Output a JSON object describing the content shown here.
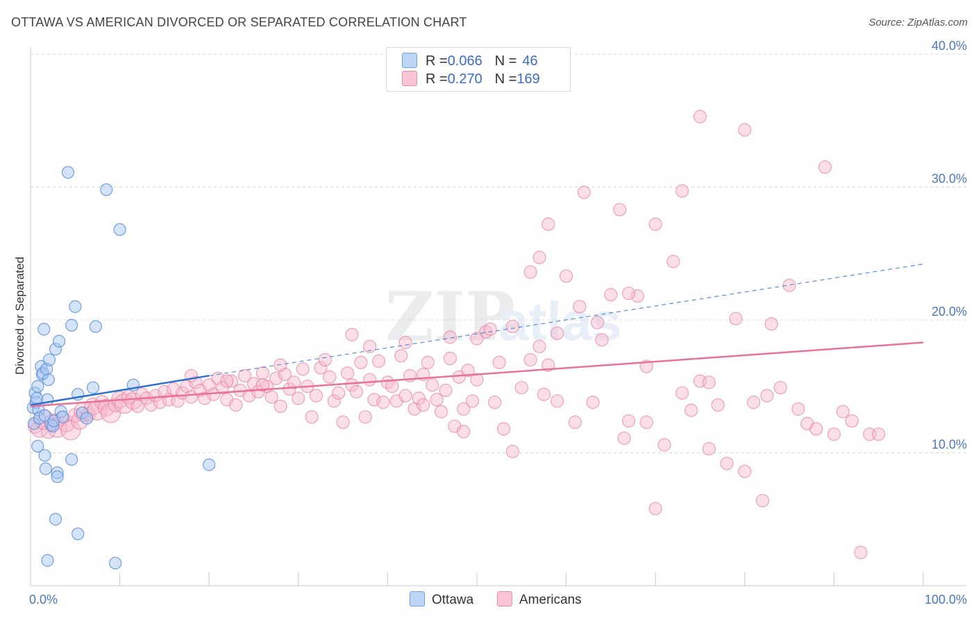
{
  "header": {
    "title": "OTTAWA VS AMERICAN DIVORCED OR SEPARATED CORRELATION CHART",
    "source": "Source: ZipAtlas.com"
  },
  "legend": {
    "rows": [
      {
        "r_label": "R = ",
        "r_value": "0.066",
        "n_label": "N = ",
        "n_value": "46"
      },
      {
        "r_label": "R = ",
        "r_value": "0.270",
        "n_label": "N = ",
        "n_value": "169"
      }
    ]
  },
  "watermark": {
    "zip": "ZIP",
    "atlas": "atlas"
  },
  "colors": {
    "ottawa_fill": "#a9c8f2",
    "ottawa_stroke": "#5b8fd8",
    "ottawa_line": "#2f6fd0",
    "americans_fill": "#f7b9cb",
    "americans_stroke": "#e77fa0",
    "americans_line": "#e8729a",
    "tick_label": "#4a77c4",
    "grid": "#d9d9d9"
  },
  "chart_data": {
    "type": "scatter",
    "title": "OTTAWA VS AMERICAN DIVORCED OR SEPARATED CORRELATION CHART",
    "xlabel": "",
    "ylabel": "Divorced or Separated",
    "xlim": [
      0,
      100
    ],
    "ylim": [
      0,
      40
    ],
    "x_tick_labels": [
      {
        "value": 0,
        "label": "0.0%"
      },
      {
        "value": 100,
        "label": "100.0%"
      }
    ],
    "y_ticks": [
      {
        "value": 10,
        "label": "10.0%"
      },
      {
        "value": 20,
        "label": "20.0%"
      },
      {
        "value": 30,
        "label": "30.0%"
      },
      {
        "value": 40,
        "label": "40.0%"
      }
    ],
    "grid": true,
    "legend_position": "top-center",
    "series": [
      {
        "name": "Ottawa",
        "color": "#a9c8f2",
        "trend": {
          "x": [
            0,
            20
          ],
          "y": [
            13.6,
            15.8
          ],
          "dashed_to": [
            100,
            24.2
          ]
        },
        "points": [
          [
            0.3,
            13.4
          ],
          [
            0.4,
            12.2
          ],
          [
            0.5,
            14.5
          ],
          [
            0.6,
            13.8
          ],
          [
            0.7,
            14.1
          ],
          [
            0.8,
            15.0
          ],
          [
            0.9,
            13.2
          ],
          [
            1.0,
            12.6
          ],
          [
            1.2,
            16.5
          ],
          [
            1.3,
            15.9
          ],
          [
            1.4,
            16.0
          ],
          [
            1.5,
            19.3
          ],
          [
            1.6,
            12.8
          ],
          [
            1.8,
            16.3
          ],
          [
            1.9,
            14.0
          ],
          [
            2.0,
            15.5
          ],
          [
            2.1,
            17.0
          ],
          [
            2.3,
            12.1
          ],
          [
            2.5,
            12.0
          ],
          [
            2.6,
            12.4
          ],
          [
            2.8,
            17.8
          ],
          [
            3.2,
            18.4
          ],
          [
            3.4,
            13.1
          ],
          [
            3.6,
            12.7
          ],
          [
            4.2,
            31.1
          ],
          [
            4.6,
            19.6
          ],
          [
            5.0,
            21.0
          ],
          [
            5.3,
            14.4
          ],
          [
            5.8,
            13.0
          ],
          [
            6.3,
            12.6
          ],
          [
            7.0,
            14.9
          ],
          [
            7.3,
            19.5
          ],
          [
            8.5,
            29.8
          ],
          [
            10.0,
            26.8
          ],
          [
            11.5,
            15.1
          ],
          [
            0.8,
            10.5
          ],
          [
            1.6,
            9.8
          ],
          [
            1.7,
            8.8
          ],
          [
            3.0,
            8.5
          ],
          [
            3.0,
            8.2
          ],
          [
            4.6,
            9.5
          ],
          [
            2.8,
            5.0
          ],
          [
            5.3,
            3.9
          ],
          [
            1.9,
            1.9
          ],
          [
            9.5,
            1.7
          ],
          [
            20.0,
            9.1
          ]
        ]
      },
      {
        "name": "Americans",
        "color": "#f7b9cb",
        "trend": {
          "x": [
            0,
            100
          ],
          "y": [
            13.5,
            18.3
          ]
        },
        "points": [
          [
            0.5,
            12.0
          ],
          [
            1.0,
            11.8
          ],
          [
            1.5,
            12.5
          ],
          [
            2.0,
            11.6
          ],
          [
            2.5,
            12.3
          ],
          [
            3.0,
            11.9
          ],
          [
            3.5,
            12.6
          ],
          [
            4.0,
            12.2
          ],
          [
            4.5,
            11.7
          ],
          [
            5.0,
            12.8
          ],
          [
            5.5,
            12.4
          ],
          [
            6.0,
            13.1
          ],
          [
            6.5,
            12.9
          ],
          [
            7.0,
            13.5
          ],
          [
            7.5,
            13.2
          ],
          [
            8.0,
            13.8
          ],
          [
            8.5,
            13.4
          ],
          [
            9.0,
            13.0
          ],
          [
            9.5,
            13.6
          ],
          [
            10.0,
            14.0
          ],
          [
            10.5,
            13.7
          ],
          [
            11.0,
            14.2
          ],
          [
            11.5,
            13.9
          ],
          [
            12.0,
            13.5
          ],
          [
            12.5,
            14.4
          ],
          [
            13.0,
            14.1
          ],
          [
            13.5,
            13.6
          ],
          [
            14.0,
            14.3
          ],
          [
            14.5,
            13.8
          ],
          [
            15.0,
            14.6
          ],
          [
            15.5,
            14.0
          ],
          [
            16.0,
            14.8
          ],
          [
            16.5,
            13.9
          ],
          [
            17.0,
            14.5
          ],
          [
            17.5,
            15.0
          ],
          [
            18.0,
            14.2
          ],
          [
            18.5,
            15.3
          ],
          [
            19.0,
            14.7
          ],
          [
            19.5,
            14.1
          ],
          [
            20.0,
            15.1
          ],
          [
            20.5,
            14.4
          ],
          [
            21.0,
            15.6
          ],
          [
            21.5,
            14.9
          ],
          [
            22.0,
            14.0
          ],
          [
            22.5,
            15.4
          ],
          [
            23.0,
            13.6
          ],
          [
            23.5,
            14.7
          ],
          [
            24.0,
            15.8
          ],
          [
            24.5,
            14.3
          ],
          [
            25.0,
            15.2
          ],
          [
            25.5,
            14.6
          ],
          [
            26.0,
            16.0
          ],
          [
            26.5,
            15.0
          ],
          [
            27.0,
            14.2
          ],
          [
            27.5,
            15.6
          ],
          [
            28.0,
            13.5
          ],
          [
            28.5,
            15.9
          ],
          [
            29.0,
            14.8
          ],
          [
            29.5,
            15.3
          ],
          [
            30.0,
            14.1
          ],
          [
            30.5,
            16.3
          ],
          [
            31.0,
            15.0
          ],
          [
            31.5,
            12.7
          ],
          [
            32.0,
            14.3
          ],
          [
            32.5,
            16.4
          ],
          [
            33.0,
            17.0
          ],
          [
            33.5,
            15.7
          ],
          [
            34.0,
            13.9
          ],
          [
            34.5,
            14.5
          ],
          [
            35.0,
            12.3
          ],
          [
            35.5,
            16.0
          ],
          [
            36.0,
            15.1
          ],
          [
            36.5,
            14.6
          ],
          [
            37.0,
            16.8
          ],
          [
            37.5,
            12.7
          ],
          [
            38.0,
            15.5
          ],
          [
            38.5,
            14.0
          ],
          [
            39.0,
            16.9
          ],
          [
            39.5,
            13.8
          ],
          [
            40.0,
            15.3
          ],
          [
            40.5,
            15.0
          ],
          [
            41.0,
            13.9
          ],
          [
            41.5,
            17.3
          ],
          [
            42.0,
            14.3
          ],
          [
            42.5,
            15.8
          ],
          [
            43.0,
            13.3
          ],
          [
            43.5,
            14.1
          ],
          [
            44.0,
            13.6
          ],
          [
            44.5,
            16.8
          ],
          [
            45.0,
            15.1
          ],
          [
            45.5,
            14.0
          ],
          [
            46.0,
            13.1
          ],
          [
            46.5,
            14.7
          ],
          [
            47.0,
            17.1
          ],
          [
            47.5,
            12.0
          ],
          [
            48.0,
            15.7
          ],
          [
            48.5,
            11.6
          ],
          [
            49.0,
            16.2
          ],
          [
            49.5,
            13.9
          ],
          [
            50.0,
            15.5
          ],
          [
            51.0,
            19.1
          ],
          [
            51.5,
            19.3
          ],
          [
            52.0,
            13.8
          ],
          [
            53.0,
            11.8
          ],
          [
            54.0,
            10.1
          ],
          [
            55.0,
            14.9
          ],
          [
            56.0,
            17.0
          ],
          [
            57.0,
            18.0
          ],
          [
            57.5,
            14.4
          ],
          [
            58.0,
            16.6
          ],
          [
            59.0,
            13.9
          ],
          [
            60.0,
            23.3
          ],
          [
            61.0,
            12.3
          ],
          [
            62.0,
            29.6
          ],
          [
            63.0,
            13.8
          ],
          [
            64.0,
            18.5
          ],
          [
            65.0,
            21.9
          ],
          [
            66.0,
            28.3
          ],
          [
            67.0,
            12.4
          ],
          [
            68.0,
            21.8
          ],
          [
            69.0,
            16.5
          ],
          [
            70.0,
            27.2
          ],
          [
            71.0,
            10.6
          ],
          [
            72.0,
            24.4
          ],
          [
            73.0,
            14.5
          ],
          [
            74.0,
            13.2
          ],
          [
            75.0,
            15.4
          ],
          [
            76.0,
            10.3
          ],
          [
            77.0,
            13.6
          ],
          [
            78.0,
            9.2
          ],
          [
            79.0,
            20.1
          ],
          [
            80.0,
            8.6
          ],
          [
            81.0,
            13.8
          ],
          [
            82.0,
            6.4
          ],
          [
            83.0,
            19.7
          ],
          [
            84.0,
            14.9
          ],
          [
            85.0,
            22.6
          ],
          [
            86.0,
            13.3
          ],
          [
            87.0,
            12.2
          ],
          [
            88.0,
            11.8
          ],
          [
            89.0,
            31.5
          ],
          [
            90.0,
            11.4
          ],
          [
            91.0,
            13.1
          ],
          [
            92.0,
            12.4
          ],
          [
            93.0,
            2.5
          ],
          [
            94.0,
            11.4
          ],
          [
            95.0,
            11.4
          ],
          [
            56.0,
            23.6
          ],
          [
            57.0,
            24.7
          ],
          [
            58.0,
            27.2
          ],
          [
            63.5,
            19.8
          ],
          [
            67.0,
            22.0
          ],
          [
            73.0,
            29.7
          ],
          [
            75.0,
            35.3
          ],
          [
            80.0,
            34.3
          ],
          [
            61.5,
            21.0
          ],
          [
            59.0,
            19.0
          ],
          [
            54.0,
            19.5
          ],
          [
            50.0,
            18.6
          ],
          [
            47.0,
            18.7
          ],
          [
            42.0,
            18.3
          ],
          [
            38.0,
            18.0
          ],
          [
            36.0,
            18.9
          ],
          [
            52.5,
            16.8
          ],
          [
            70.0,
            5.8
          ],
          [
            76.0,
            15.3
          ],
          [
            69.0,
            12.3
          ],
          [
            66.5,
            11.1
          ],
          [
            82.5,
            14.3
          ],
          [
            48.5,
            13.3
          ],
          [
            44.0,
            15.9
          ],
          [
            28.0,
            16.6
          ],
          [
            26.0,
            15.1
          ],
          [
            22.0,
            15.4
          ],
          [
            18.0,
            15.8
          ]
        ]
      }
    ]
  }
}
